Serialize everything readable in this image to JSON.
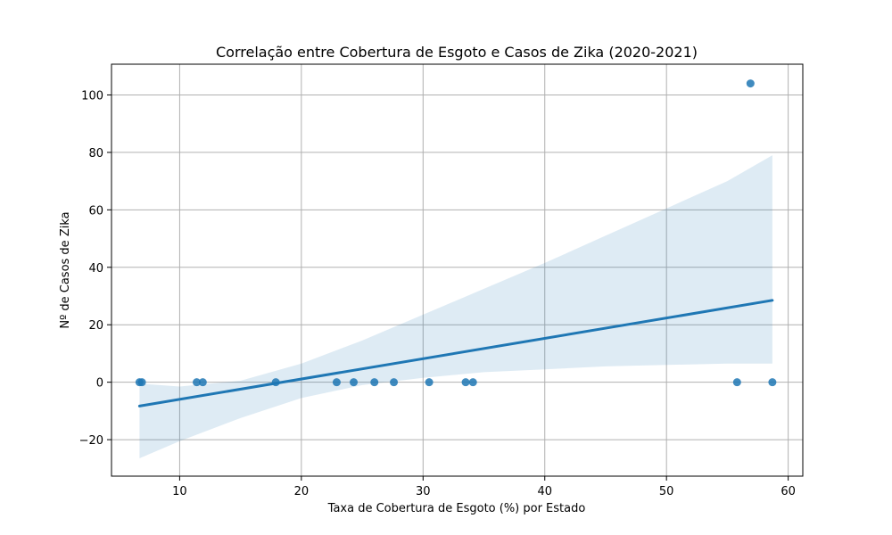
{
  "chart_data": {
    "type": "scatter",
    "title": "Correlação entre Cobertura de Esgoto e Casos de Zika (2020-2021)",
    "xlabel": "Taxa de Cobertura de Esgoto (%) por Estado",
    "ylabel": "Nº de Casos de Zika",
    "xlim": [
      4.4,
      61.2
    ],
    "ylim": [
      -32.7,
      110.7
    ],
    "xticks": [
      10,
      20,
      30,
      40,
      50,
      60
    ],
    "yticks": [
      -20,
      0,
      20,
      40,
      60,
      80,
      100
    ],
    "ytick_labels": [
      "−20",
      "0",
      "20",
      "40",
      "60",
      "80",
      "100"
    ],
    "grid": true,
    "points": [
      {
        "x": 6.7,
        "y": 0
      },
      {
        "x": 6.9,
        "y": 0
      },
      {
        "x": 11.4,
        "y": 0
      },
      {
        "x": 11.9,
        "y": 0
      },
      {
        "x": 17.9,
        "y": 0
      },
      {
        "x": 22.9,
        "y": 0
      },
      {
        "x": 24.3,
        "y": 0
      },
      {
        "x": 26.0,
        "y": 0
      },
      {
        "x": 27.6,
        "y": 0
      },
      {
        "x": 30.5,
        "y": 0
      },
      {
        "x": 33.5,
        "y": 0
      },
      {
        "x": 34.1,
        "y": 0
      },
      {
        "x": 55.8,
        "y": 0
      },
      {
        "x": 56.9,
        "y": 104
      },
      {
        "x": 58.7,
        "y": 0
      }
    ],
    "regression": {
      "x": [
        6.7,
        58.7
      ],
      "y": [
        -8.3,
        28.5
      ]
    },
    "confidence_band": {
      "x": [
        6.7,
        10,
        15,
        20,
        25,
        30,
        35,
        40,
        45,
        50,
        55,
        58.7
      ],
      "upper": [
        -0.5,
        -1.5,
        0.5,
        6.5,
        14.5,
        23.5,
        32.5,
        41.5,
        51,
        60.5,
        70,
        79
      ],
      "lower": [
        -26.5,
        -20.5,
        -12.5,
        -5.5,
        -1,
        1.5,
        3.5,
        4.5,
        5.5,
        6,
        6.5,
        6.5
      ]
    },
    "colors": {
      "points": "#1f77b4",
      "line": "#1f77b4",
      "band": "#1f77b4",
      "grid": "#b0b0b0"
    }
  }
}
